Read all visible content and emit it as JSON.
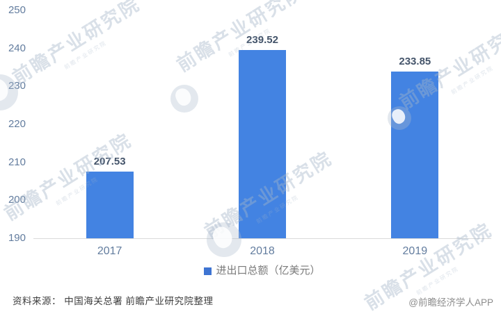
{
  "chart_data": {
    "type": "bar",
    "categories": [
      "2017",
      "2018",
      "2019"
    ],
    "series": [
      {
        "name": "进出口总额（亿美元）",
        "values": [
          207.53,
          239.52,
          233.85
        ]
      }
    ],
    "value_labels": [
      "207.53",
      "239.52",
      "233.85"
    ],
    "title": "",
    "xlabel": "",
    "ylabel": "",
    "ylim": [
      190,
      250
    ],
    "yticks": [
      250,
      240,
      230,
      220,
      210,
      200,
      190
    ],
    "grid": false,
    "legend_position": "bottom",
    "bar_color": "#4383E2"
  },
  "legend": {
    "label": "进出口总额（亿美元）",
    "marker_color": "#3E74D2"
  },
  "footer": {
    "source": "资料来源： 中国海关总署 前瞻产业研究院整理",
    "credit": "@前瞻经济学人APP"
  },
  "watermark": {
    "text": "前瞻产业研究院"
  },
  "colors": {
    "bar": "#4383E2",
    "value_label": "#44546A",
    "axis_label": "#627C9E",
    "axis_line": "#D9D9D9",
    "legend_text": "#7A7A7A",
    "source_text": "#3D3D3D",
    "credit_text": "#8C8C8C"
  }
}
